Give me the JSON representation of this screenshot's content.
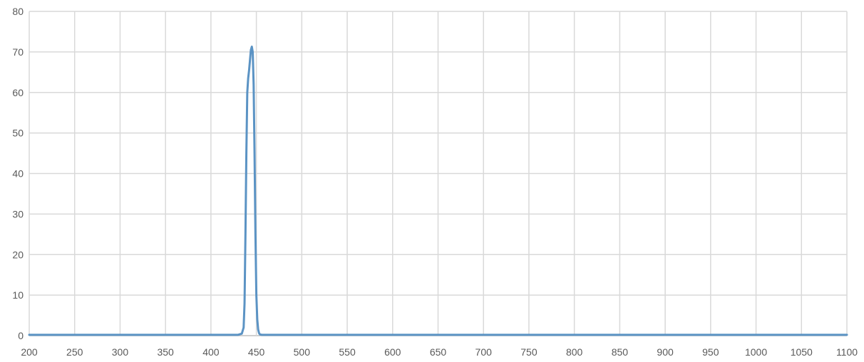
{
  "chart_data": {
    "type": "line",
    "title": "",
    "xlabel": "",
    "ylabel": "",
    "xlim": [
      200,
      1100
    ],
    "ylim": [
      0,
      80
    ],
    "xticks": [
      200,
      250,
      300,
      350,
      400,
      450,
      500,
      550,
      600,
      650,
      700,
      750,
      800,
      850,
      900,
      950,
      1000,
      1050,
      1100
    ],
    "yticks": [
      0,
      10,
      20,
      30,
      40,
      50,
      60,
      70,
      80
    ],
    "xtick_labels": [
      "200",
      "250",
      "300",
      "350",
      "400",
      "450",
      "500",
      "550",
      "600",
      "650",
      "700",
      "750",
      "800",
      "850",
      "900",
      "950",
      "1000",
      "1050",
      "1100"
    ],
    "ytick_labels": [
      "0",
      "10",
      "20",
      "30",
      "40",
      "50",
      "60",
      "70",
      "80"
    ],
    "grid": true,
    "legend": "none",
    "series": [
      {
        "color": "#5b93c4",
        "x": [
          200,
          430,
          434,
          436,
          437,
          438,
          439,
          440,
          441,
          442,
          443,
          444,
          445,
          446,
          447,
          448,
          449,
          450,
          451,
          452,
          453,
          454,
          456,
          460,
          1100
        ],
        "y": [
          0.2,
          0.2,
          0.5,
          2,
          8,
          25,
          45,
          60,
          63.5,
          65.5,
          68,
          70.5,
          71.3,
          70,
          62,
          45,
          25,
          10,
          4,
          1.5,
          0.6,
          0.3,
          0.2,
          0.2,
          0.2
        ]
      }
    ]
  }
}
